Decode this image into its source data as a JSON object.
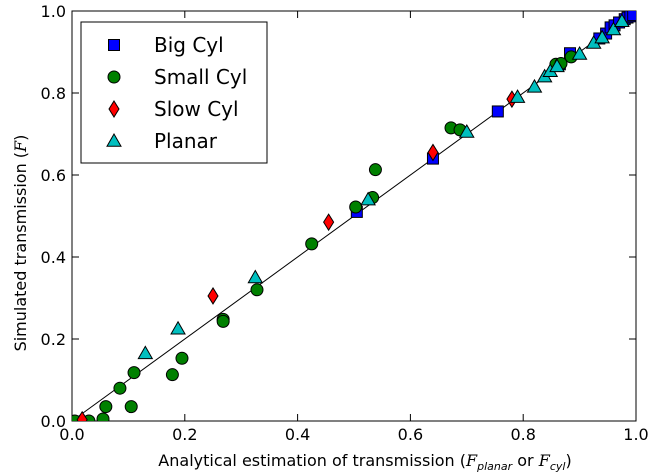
{
  "chart_data": {
    "type": "scatter",
    "xlabel_main": "Analytical estimation of transmission (",
    "xlabel_f1": "F",
    "xlabel_sub1": "planar",
    "xlabel_or": " or ",
    "xlabel_f2": "F",
    "xlabel_sub2": "cyl",
    "xlabel_end": ")",
    "ylabel_main": "Simulated transmission (",
    "ylabel_f": "F",
    "ylabel_end": ")",
    "xlim": [
      0.0,
      1.0
    ],
    "ylim": [
      0.0,
      1.0
    ],
    "xticks": [
      "0.0",
      "0.2",
      "0.4",
      "0.6",
      "0.8",
      "1.0"
    ],
    "yticks": [
      "0.0",
      "0.2",
      "0.4",
      "0.6",
      "0.8",
      "1.0"
    ],
    "legend_position": "top-left",
    "reference_line": {
      "x": [
        0.0,
        1.0
      ],
      "y": [
        0.0,
        1.0
      ]
    },
    "series": [
      {
        "name": "Big Cyl",
        "marker": "square",
        "color": "#0000ff",
        "points": [
          [
            0.505,
            0.51
          ],
          [
            0.64,
            0.64
          ],
          [
            0.755,
            0.755
          ],
          [
            0.865,
            0.87
          ],
          [
            0.883,
            0.897
          ],
          [
            0.935,
            0.933
          ],
          [
            0.947,
            0.945
          ],
          [
            0.955,
            0.96
          ],
          [
            0.962,
            0.965
          ],
          [
            0.97,
            0.972
          ],
          [
            0.98,
            0.98
          ],
          [
            0.985,
            0.984
          ],
          [
            0.99,
            0.987
          ],
          [
            0.995,
            0.99
          ]
        ]
      },
      {
        "name": "Small Cyl",
        "marker": "circle",
        "color": "#008000",
        "points": [
          [
            0.005,
            0.0
          ],
          [
            0.03,
            0.0
          ],
          [
            0.055,
            0.005
          ],
          [
            0.06,
            0.035
          ],
          [
            0.085,
            0.08
          ],
          [
            0.105,
            0.035
          ],
          [
            0.11,
            0.118
          ],
          [
            0.178,
            0.113
          ],
          [
            0.195,
            0.153
          ],
          [
            0.268,
            0.248
          ],
          [
            0.268,
            0.243
          ],
          [
            0.328,
            0.32
          ],
          [
            0.425,
            0.432
          ],
          [
            0.503,
            0.522
          ],
          [
            0.533,
            0.545
          ],
          [
            0.538,
            0.613
          ],
          [
            0.672,
            0.715
          ],
          [
            0.688,
            0.71
          ],
          [
            0.858,
            0.87
          ],
          [
            0.867,
            0.872
          ],
          [
            0.885,
            0.888
          ]
        ]
      },
      {
        "name": "Slow Cyl",
        "marker": "diamond",
        "color": "#ff0000",
        "points": [
          [
            0.018,
            0.003
          ],
          [
            0.25,
            0.305
          ],
          [
            0.455,
            0.485
          ],
          [
            0.64,
            0.655
          ],
          [
            0.78,
            0.785
          ]
        ]
      },
      {
        "name": "Planar",
        "marker": "triangle",
        "color": "#00bfbf",
        "points": [
          [
            0.13,
            0.165
          ],
          [
            0.188,
            0.225
          ],
          [
            0.325,
            0.35
          ],
          [
            0.525,
            0.54
          ],
          [
            0.7,
            0.705
          ],
          [
            0.79,
            0.79
          ],
          [
            0.82,
            0.815
          ],
          [
            0.838,
            0.84
          ],
          [
            0.848,
            0.853
          ],
          [
            0.86,
            0.865
          ],
          [
            0.9,
            0.895
          ],
          [
            0.925,
            0.922
          ],
          [
            0.94,
            0.935
          ],
          [
            0.96,
            0.955
          ],
          [
            0.975,
            0.975
          ]
        ]
      }
    ]
  }
}
